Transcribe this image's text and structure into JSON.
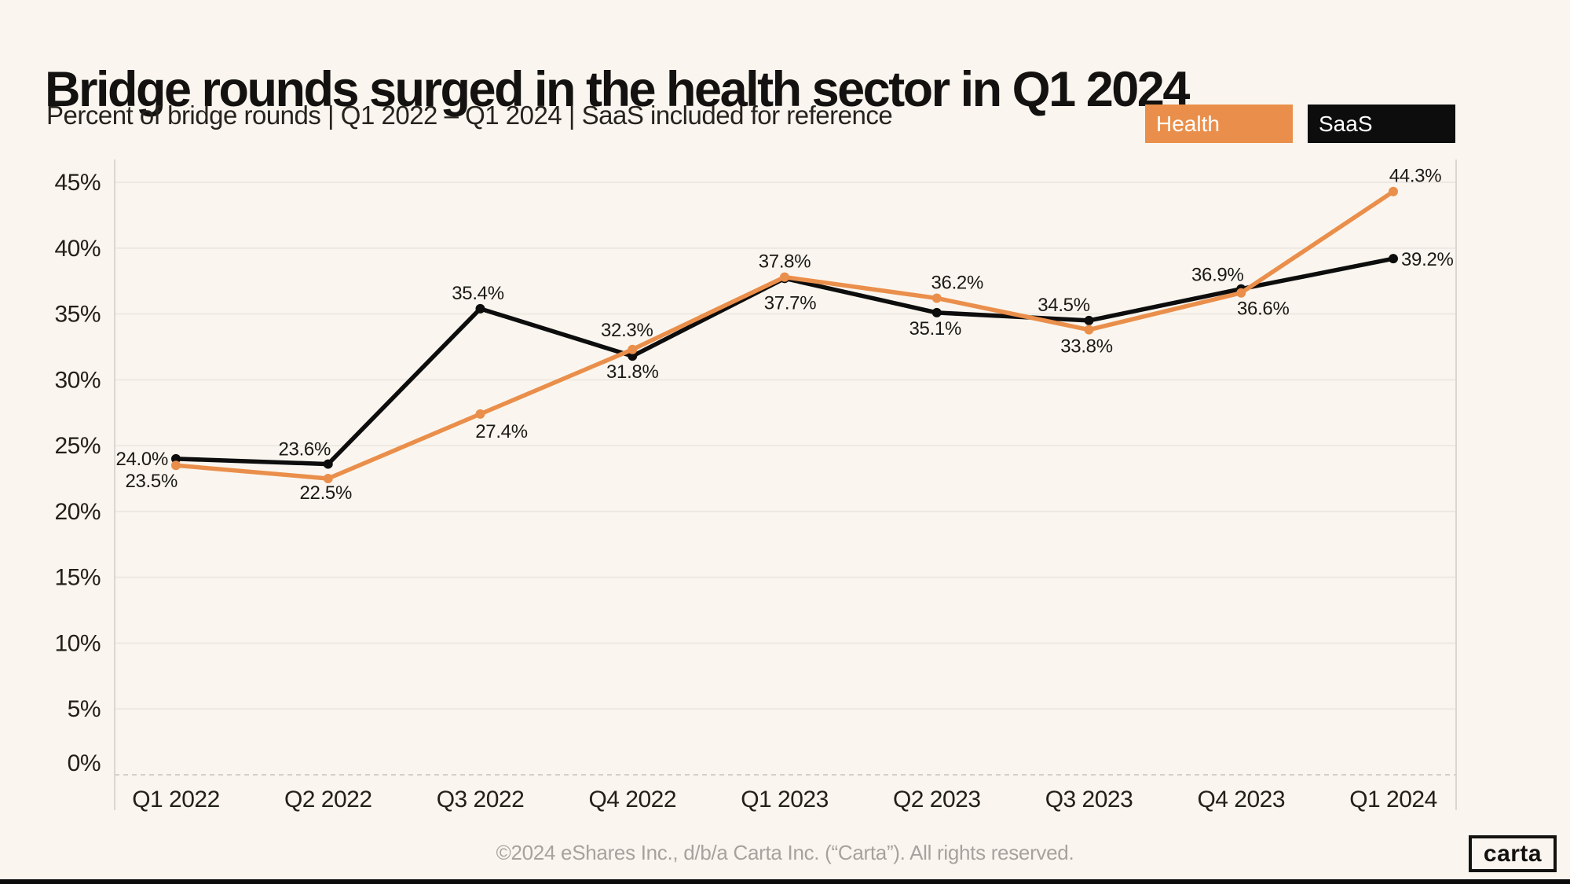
{
  "page": {
    "title": "Bridge rounds surged in the health sector in Q1 2024",
    "subtitle": "Percent of bridge rounds | Q1 2022 – Q1 2024 | SaaS included for reference",
    "footer": "©2024 eShares Inc., d/b/a Carta Inc. (“Carta”). All rights reserved.",
    "logo_text": "carta"
  },
  "colors": {
    "background": "#FAF6EF",
    "health": "#EA8F4B",
    "saas": "#0D0D0D",
    "gridline": "#EDE9E2",
    "axis_line": "#DBD6CF",
    "zero_line": "#C7C2BB",
    "tick_text": "#232019",
    "label_text": "#1B1916",
    "footer_text": "#A6A29D"
  },
  "legend": [
    {
      "label": "Health",
      "color": "#EA8F4B"
    },
    {
      "label": "SaaS",
      "color": "#0D0D0D"
    }
  ],
  "chart_data": {
    "type": "line",
    "title": "Bridge rounds surged in the health sector in Q1 2024",
    "subtitle": "Percent of bridge rounds | Q1 2022 – Q1 2024 | SaaS included for reference",
    "categories": [
      "Q1 2022",
      "Q2 2022",
      "Q3 2022",
      "Q4 2022",
      "Q1 2023",
      "Q2 2023",
      "Q3 2023",
      "Q4 2023",
      "Q1 2024"
    ],
    "series": [
      {
        "name": "Health",
        "color": "#EA8F4B",
        "values": [
          23.5,
          22.5,
          27.4,
          32.3,
          37.8,
          36.2,
          33.8,
          36.6,
          44.3
        ],
        "labels": [
          "23.5%",
          "22.5%",
          "27.4%",
          "32.3%",
          "37.8%",
          "36.2%",
          "33.8%",
          "36.6%",
          "44.3%"
        ]
      },
      {
        "name": "SaaS",
        "color": "#0D0D0D",
        "values": [
          24.0,
          23.6,
          35.4,
          31.8,
          37.7,
          35.1,
          34.5,
          36.9,
          39.2
        ],
        "labels": [
          "24.0%",
          "23.6%",
          "35.4%",
          "31.8%",
          "37.7%",
          "35.1%",
          "34.5%",
          "36.9%",
          "39.2%"
        ]
      }
    ],
    "y_ticks": [
      {
        "value": 0,
        "label": "0%"
      },
      {
        "value": 5,
        "label": "5%"
      },
      {
        "value": 10,
        "label": "10%"
      },
      {
        "value": 15,
        "label": "15%"
      },
      {
        "value": 20,
        "label": "20%"
      },
      {
        "value": 25,
        "label": "25%"
      },
      {
        "value": 30,
        "label": "30%"
      },
      {
        "value": 35,
        "label": "35%"
      },
      {
        "value": 40,
        "label": "40%"
      },
      {
        "value": 45,
        "label": "45%"
      }
    ],
    "ylim": [
      0,
      45
    ],
    "grid": true,
    "legend_position": "top-right"
  }
}
